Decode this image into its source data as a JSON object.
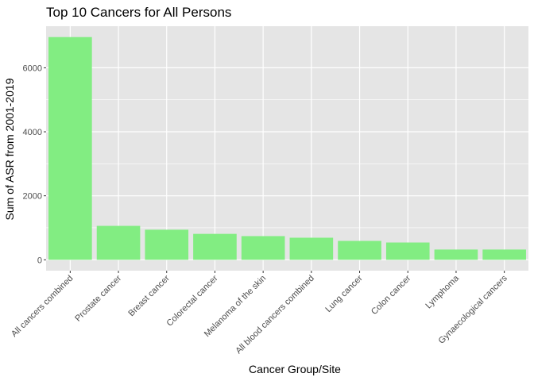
{
  "chart_data": {
    "type": "bar",
    "title": "Top 10 Cancers for All Persons",
    "xlabel": "Cancer Group/Site",
    "ylabel": "Sum of ASR from 2001-2019",
    "categories": [
      "All cancers combined",
      "Prostate cancer",
      "Breast cancer",
      "Colorectal cancer",
      "Melanoma of the skin",
      "All blood cancers combined",
      "Lung cancer",
      "Colon cancer",
      "Lymphoma",
      "Gynaecological cancers"
    ],
    "values": [
      6960,
      1060,
      940,
      810,
      740,
      690,
      590,
      540,
      320,
      320
    ],
    "ylim": [
      -340,
      7300
    ],
    "yticks": [
      0,
      2000,
      4000,
      6000
    ],
    "ytick_labels": [
      "0",
      "2000",
      "4000",
      "6000"
    ],
    "grid": true,
    "bar_color": "#82ed82",
    "panel_color": "#e5e5e5",
    "grid_color": "#ffffff"
  }
}
